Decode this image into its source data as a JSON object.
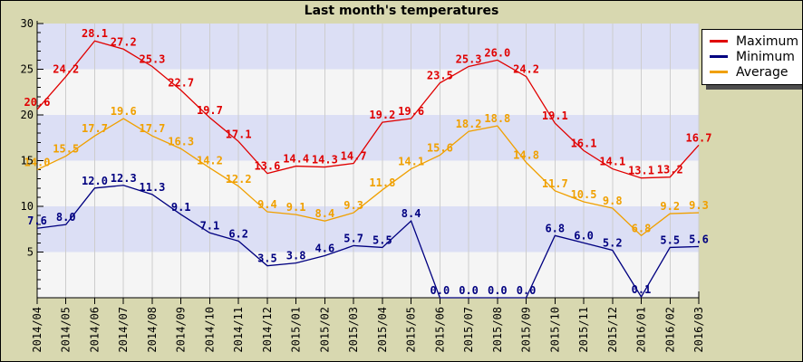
{
  "title": "Last month's temperatures",
  "colors": {
    "background": "#d8d8b0",
    "band_light_blue": "#dcdff5",
    "band_white": "#f5f5f5",
    "gridline": "#cdcdcd",
    "axis": "#000000",
    "maximum_red": "#e00000",
    "minimum_navy": "#000080",
    "average_orange": "#f0a000"
  },
  "chart_data": {
    "type": "line",
    "title": "Last month's temperatures",
    "xlabel": "",
    "ylabel": "",
    "ylim": [
      0,
      30
    ],
    "y_major_ticks": [
      5,
      10,
      15,
      20,
      25,
      30
    ],
    "grid": true,
    "data_labels": true,
    "legend_position": "top-right",
    "categories": [
      "2014/04",
      "2014/05",
      "2014/06",
      "2014/07",
      "2014/08",
      "2014/09",
      "2014/10",
      "2014/11",
      "2014/12",
      "2015/01",
      "2015/02",
      "2015/03",
      "2015/04",
      "2015/05",
      "2015/06",
      "2015/07",
      "2015/08",
      "2015/09",
      "2015/10",
      "2015/11",
      "2015/12",
      "2016/01",
      "2016/02",
      "2016/03"
    ],
    "series": [
      {
        "name": "Maximum",
        "color": "#e00000",
        "values": [
          20.6,
          24.2,
          28.1,
          27.2,
          25.3,
          22.7,
          19.7,
          17.1,
          13.6,
          14.4,
          14.3,
          14.7,
          19.2,
          19.6,
          23.5,
          25.3,
          26.0,
          24.2,
          19.1,
          16.1,
          14.1,
          13.1,
          13.2,
          16.7
        ]
      },
      {
        "name": "Minimum",
        "color": "#000080",
        "values": [
          7.6,
          8.0,
          12.0,
          12.3,
          11.3,
          9.1,
          7.1,
          6.2,
          3.5,
          3.8,
          4.6,
          5.7,
          5.5,
          8.4,
          0.0,
          0.0,
          0.0,
          0.0,
          6.8,
          6.0,
          5.2,
          0.1,
          5.5,
          5.6
        ]
      },
      {
        "name": "Average",
        "color": "#f0a000",
        "values": [
          14.0,
          15.5,
          17.7,
          19.6,
          17.7,
          16.3,
          14.2,
          12.2,
          9.4,
          9.1,
          8.4,
          9.3,
          11.8,
          14.1,
          15.6,
          18.2,
          18.8,
          14.8,
          11.7,
          10.5,
          9.8,
          6.8,
          9.2,
          9.3
        ]
      }
    ]
  }
}
